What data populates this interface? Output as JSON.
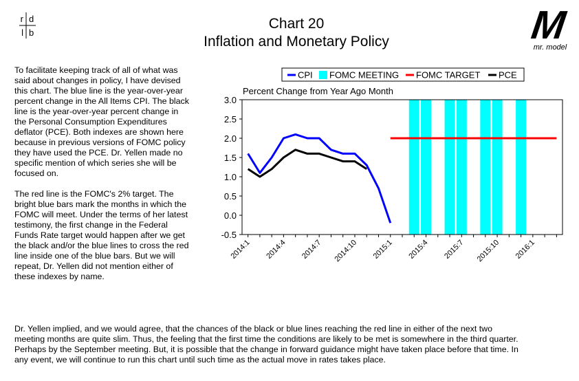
{
  "header": {
    "title": "Chart 20",
    "subtitle": "Inflation and Monetary Policy",
    "logo_left": [
      "r",
      "d",
      "l",
      "b"
    ],
    "logo_right_mark": "M",
    "logo_right": "mr. model"
  },
  "text": {
    "left": [
      "To facilitate keeping track of all of what was said about changes in policy, I have devised this chart.  The blue line is the year-over-year percent change in the All Items CPI.  The black line is the year-over-year percent change in the Personal Consumption Expenditures deflator (PCE). Both indexes are shown here because in previous versions of FOMC policy they have used the PCE.  Dr. Yellen made no specific mention of which series she will be focused on.",
      "The red line is the FOMC's 2% target.  The bright blue bars mark the months in which the FOMC will meet.  Under the terms of her latest testimony, the first change in the Federal Funds Rate target would happen after we get the black and/or the blue lines to cross the red line inside one of the blue bars.  But we will repeat, Dr. Yellen did not mention either of these indexes by name."
    ],
    "bottom": "Dr. Yellen implied, and we would agree, that the chances of the black or blue lines reaching the red line in either of the next two meeting months are quite slim.  Thus, the feeling that the first time the conditions are likely to be met is somewhere in the third quarter.  Perhaps by the September meeting.  But, it is possible that the change in forward guidance might have taken place before that time.  In any event, we will continue to run this chart until such time as the actual move in rates takes place."
  },
  "chart_data": {
    "type": "line",
    "title": "Percent Change from Year Ago Month",
    "categories": [
      "2014:1",
      null,
      null,
      "2014:4",
      null,
      null,
      "2014:7",
      null,
      null,
      "2014:10",
      null,
      null,
      "2015:1",
      null,
      null,
      "2015:4",
      null,
      null,
      "2015:7",
      null,
      null,
      "2015:10",
      null,
      null,
      "2016:1",
      null,
      null
    ],
    "series": [
      {
        "name": "CPI",
        "color": "#0000ff",
        "kind": "line",
        "values": [
          1.6,
          1.1,
          1.5,
          2.0,
          2.1,
          2.0,
          2.0,
          1.7,
          1.6,
          1.6,
          1.3,
          0.7,
          -0.2,
          null,
          null,
          null,
          null,
          null,
          null,
          null,
          null,
          null,
          null,
          null,
          null,
          null,
          null
        ]
      },
      {
        "name": "FOMC MEETING",
        "color": "#00ffff",
        "kind": "bar",
        "values": [
          null,
          null,
          null,
          null,
          null,
          null,
          null,
          null,
          null,
          null,
          null,
          null,
          null,
          null,
          3.0,
          3.0,
          null,
          3.0,
          3.0,
          null,
          3.0,
          3.0,
          null,
          3.0,
          null,
          null,
          null
        ]
      },
      {
        "name": "FOMC TARGET",
        "color": "#ff0000",
        "kind": "line",
        "values": [
          null,
          null,
          null,
          null,
          null,
          null,
          null,
          null,
          null,
          null,
          null,
          null,
          2.0,
          2.0,
          2.0,
          2.0,
          2.0,
          2.0,
          2.0,
          2.0,
          2.0,
          2.0,
          2.0,
          2.0,
          2.0,
          2.0,
          2.0
        ]
      },
      {
        "name": "PCE",
        "color": "#000000",
        "kind": "line",
        "values": [
          1.2,
          1.0,
          1.2,
          1.5,
          1.7,
          1.6,
          1.6,
          1.5,
          1.4,
          1.4,
          1.2,
          null,
          null,
          null,
          null,
          null,
          null,
          null,
          null,
          null,
          null,
          null,
          null,
          null,
          null,
          null,
          null
        ]
      }
    ],
    "ylim": [
      -0.5,
      3.0
    ],
    "yticks": [
      {
        "value": 3.0,
        "label": "3.0"
      },
      {
        "value": 2.5,
        "label": "2.5"
      },
      {
        "value": 2.0,
        "label": "2.0"
      },
      {
        "value": 1.5,
        "label": "1.5"
      },
      {
        "value": 1.0,
        "label": "1.0"
      },
      {
        "value": 0.5,
        "label": "0.5"
      },
      {
        "value": 0.0,
        "label": "0.0"
      },
      {
        "value": -0.5,
        "label": "-0.5"
      }
    ]
  }
}
